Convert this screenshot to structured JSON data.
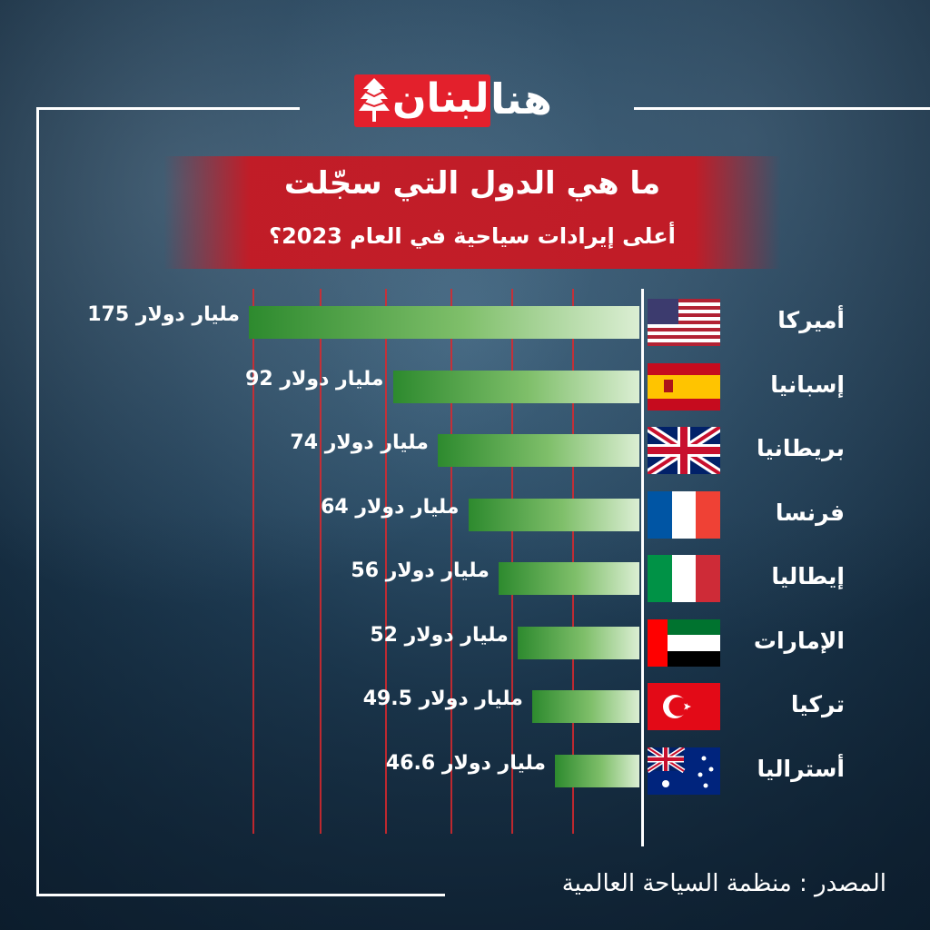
{
  "brand": {
    "logo_red": "لبنان",
    "logo_white": "هنا"
  },
  "title": "ما هي الدول التي سجّلت",
  "subtitle": "أعلى إيرادات سياحية في العام 2023؟",
  "source_label": "المصدر : منظمة السياحة العالمية",
  "colors": {
    "accent_red": "#e3202c",
    "bar_dark": "#2d8a2e",
    "bar_light": "#dbeed3"
  },
  "chart_data": {
    "type": "bar",
    "orientation": "horizontal",
    "title": "ما هي الدول التي سجّلت",
    "subtitle": "أعلى إيرادات سياحية في العام 2023؟",
    "unit": "مليار دولار",
    "categories": [
      "أميركا",
      "إسبانيا",
      "بريطانيا",
      "فرنسا",
      "إيطاليا",
      "الإمارات",
      "تركيا",
      "أستراليا"
    ],
    "values": [
      175,
      92,
      74,
      64,
      56,
      52,
      49.5,
      46.6
    ],
    "value_labels": [
      "175 مليار دولار",
      "92 مليار دولار",
      "74 مليار دولار",
      "64 مليار دولار",
      "56 مليار دولار",
      "52 مليار دولار",
      "49.5  مليار دولار",
      "46.6  مليار دولار"
    ],
    "flags": [
      "usa-flag-icon",
      "spain-flag-icon",
      "uk-flag-icon",
      "france-flag-icon",
      "italy-flag-icon",
      "uae-flag-icon",
      "turkey-flag-icon",
      "australia-flag-icon"
    ],
    "grid": true,
    "source": "المصدر : منظمة السياحة العالمية"
  }
}
